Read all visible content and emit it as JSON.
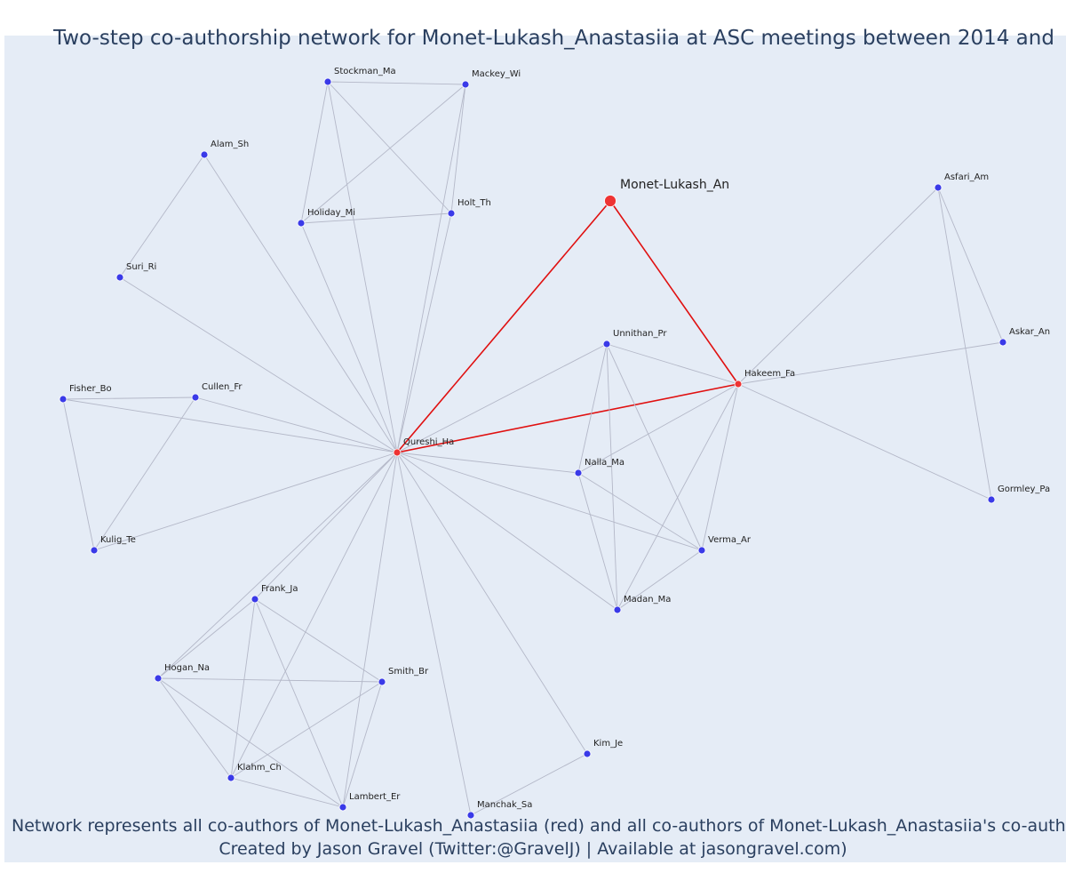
{
  "title": "Two-step co-authorship network for Monet-Lukash_Anastasiia at ASC meetings between 2014 and",
  "caption_line1": "Network represents all co-authors of Monet-Lukash_Anastasiia (red) and all co-authors of Monet-Lukash_Anastasiia's co-authors",
  "caption_line2": "Created by Jason Gravel (Twitter:@GravelJ) | Available at jasongravel.com)",
  "colors": {
    "background": "#e5ecf6",
    "edge": "#b4b8c8",
    "focus_edge": "#e01010",
    "node": "#3a3ae8",
    "focus_node": "#ee3333"
  },
  "nodes": [
    {
      "id": "Monet-Lukash_An",
      "focus": true
    },
    {
      "id": "Hakeem_Fa",
      "red": true
    },
    {
      "id": "Qureshi_Ha",
      "red": true
    },
    {
      "id": "Stockman_Ma"
    },
    {
      "id": "Mackey_Wi"
    },
    {
      "id": "Alam_Sh"
    },
    {
      "id": "Holiday_Mi"
    },
    {
      "id": "Holt_Th"
    },
    {
      "id": "Suri_Ri"
    },
    {
      "id": "Asfari_Am"
    },
    {
      "id": "Askar_An"
    },
    {
      "id": "Unnithan_Pr"
    },
    {
      "id": "Fisher_Bo"
    },
    {
      "id": "Cullen_Fr"
    },
    {
      "id": "Nalla_Ma"
    },
    {
      "id": "Gormley_Pa"
    },
    {
      "id": "Kulig_Te"
    },
    {
      "id": "Verma_Ar"
    },
    {
      "id": "Frank_Ja"
    },
    {
      "id": "Madan_Ma"
    },
    {
      "id": "Hogan_Na"
    },
    {
      "id": "Smith_Br"
    },
    {
      "id": "Kim_Je"
    },
    {
      "id": "Klahm_Ch"
    },
    {
      "id": "Lambert_Er"
    },
    {
      "id": "Manchak_Sa"
    }
  ],
  "edges": [
    [
      "Monet-Lukash_An",
      "Qureshi_Ha",
      true
    ],
    [
      "Monet-Lukash_An",
      "Hakeem_Fa",
      true
    ],
    [
      "Qureshi_Ha",
      "Hakeem_Fa",
      true
    ],
    [
      "Stockman_Ma",
      "Mackey_Wi"
    ],
    [
      "Stockman_Ma",
      "Holiday_Mi"
    ],
    [
      "Stockman_Ma",
      "Holt_Th"
    ],
    [
      "Stockman_Ma",
      "Qureshi_Ha"
    ],
    [
      "Mackey_Wi",
      "Holiday_Mi"
    ],
    [
      "Mackey_Wi",
      "Holt_Th"
    ],
    [
      "Mackey_Wi",
      "Qureshi_Ha"
    ],
    [
      "Holiday_Mi",
      "Holt_Th"
    ],
    [
      "Holiday_Mi",
      "Qureshi_Ha"
    ],
    [
      "Holt_Th",
      "Qureshi_Ha"
    ],
    [
      "Alam_Sh",
      "Suri_Ri"
    ],
    [
      "Alam_Sh",
      "Qureshi_Ha"
    ],
    [
      "Suri_Ri",
      "Qureshi_Ha"
    ],
    [
      "Fisher_Bo",
      "Cullen_Fr"
    ],
    [
      "Fisher_Bo",
      "Kulig_Te"
    ],
    [
      "Fisher_Bo",
      "Qureshi_Ha"
    ],
    [
      "Cullen_Fr",
      "Kulig_Te"
    ],
    [
      "Cullen_Fr",
      "Qureshi_Ha"
    ],
    [
      "Kulig_Te",
      "Qureshi_Ha"
    ],
    [
      "Unnithan_Pr",
      "Qureshi_Ha"
    ],
    [
      "Unnithan_Pr",
      "Hakeem_Fa"
    ],
    [
      "Unnithan_Pr",
      "Nalla_Ma"
    ],
    [
      "Unnithan_Pr",
      "Verma_Ar"
    ],
    [
      "Unnithan_Pr",
      "Madan_Ma"
    ],
    [
      "Nalla_Ma",
      "Qureshi_Ha"
    ],
    [
      "Nalla_Ma",
      "Hakeem_Fa"
    ],
    [
      "Nalla_Ma",
      "Verma_Ar"
    ],
    [
      "Nalla_Ma",
      "Madan_Ma"
    ],
    [
      "Verma_Ar",
      "Qureshi_Ha"
    ],
    [
      "Verma_Ar",
      "Hakeem_Fa"
    ],
    [
      "Verma_Ar",
      "Madan_Ma"
    ],
    [
      "Madan_Ma",
      "Qureshi_Ha"
    ],
    [
      "Madan_Ma",
      "Hakeem_Fa"
    ],
    [
      "Hakeem_Fa",
      "Asfari_Am"
    ],
    [
      "Hakeem_Fa",
      "Askar_An"
    ],
    [
      "Hakeem_Fa",
      "Gormley_Pa"
    ],
    [
      "Asfari_Am",
      "Askar_An"
    ],
    [
      "Asfari_Am",
      "Gormley_Pa"
    ],
    [
      "Frank_Ja",
      "Hogan_Na"
    ],
    [
      "Frank_Ja",
      "Smith_Br"
    ],
    [
      "Frank_Ja",
      "Klahm_Ch"
    ],
    [
      "Frank_Ja",
      "Lambert_Er"
    ],
    [
      "Frank_Ja",
      "Qureshi_Ha"
    ],
    [
      "Hogan_Na",
      "Smith_Br"
    ],
    [
      "Hogan_Na",
      "Klahm_Ch"
    ],
    [
      "Hogan_Na",
      "Lambert_Er"
    ],
    [
      "Hogan_Na",
      "Qureshi_Ha"
    ],
    [
      "Smith_Br",
      "Klahm_Ch"
    ],
    [
      "Smith_Br",
      "Lambert_Er"
    ],
    [
      "Klahm_Ch",
      "Lambert_Er"
    ],
    [
      "Klahm_Ch",
      "Qureshi_Ha"
    ],
    [
      "Lambert_Er",
      "Qureshi_Ha"
    ],
    [
      "Kim_Je",
      "Manchak_Sa"
    ],
    [
      "Kim_Je",
      "Qureshi_Ha"
    ],
    [
      "Manchak_Sa",
      "Qureshi_Ha"
    ]
  ]
}
